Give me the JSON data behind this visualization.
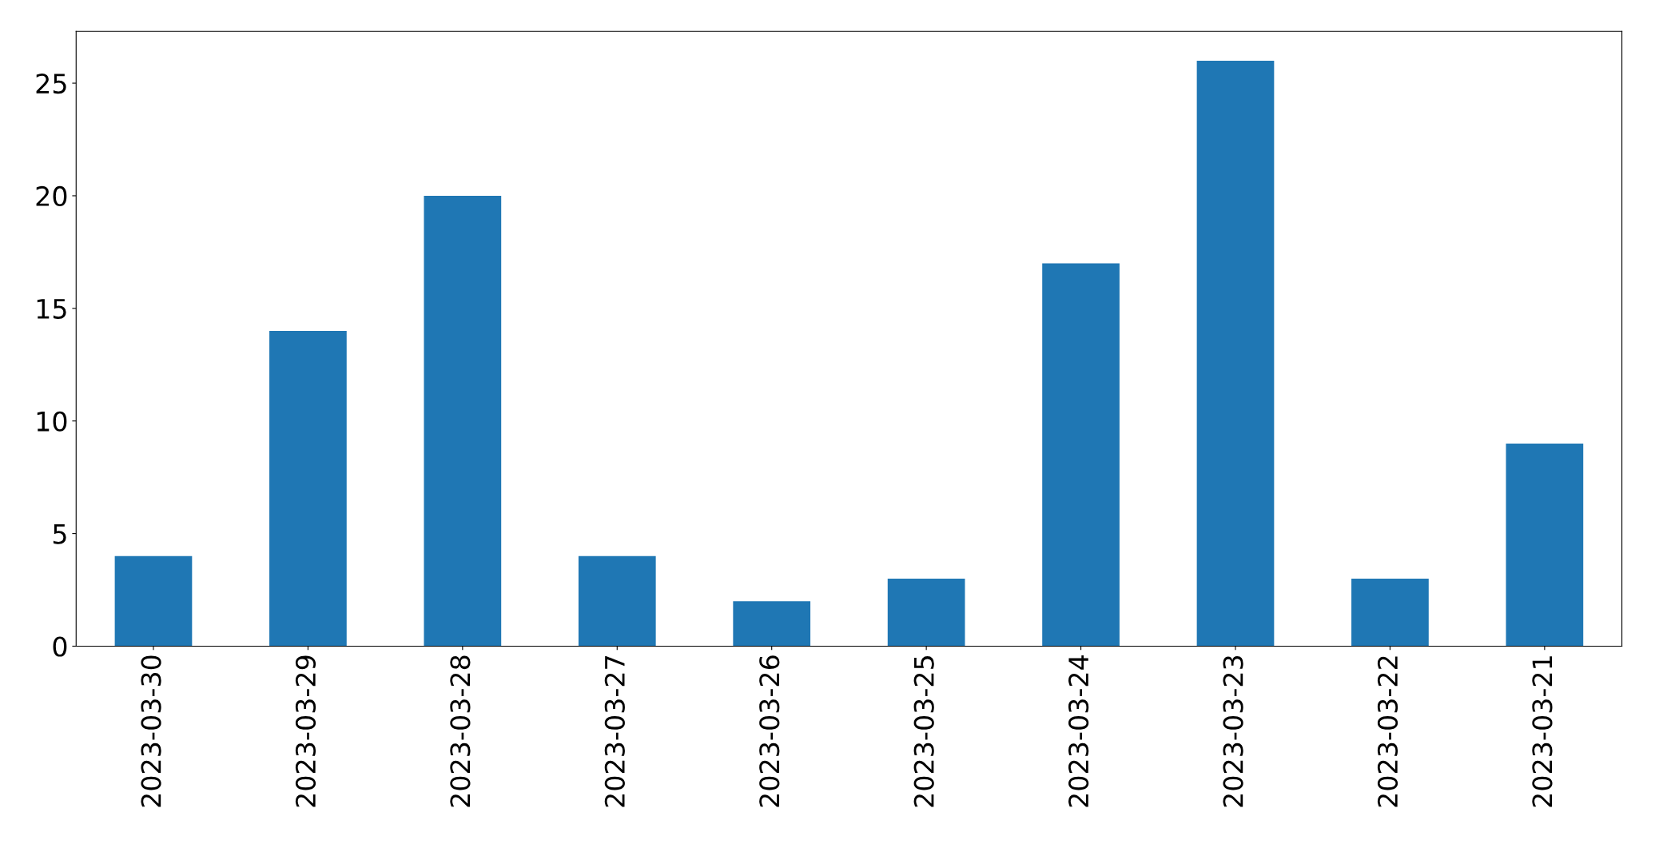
{
  "chart_data": {
    "type": "bar",
    "categories": [
      "2023-03-30",
      "2023-03-29",
      "2023-03-28",
      "2023-03-27",
      "2023-03-26",
      "2023-03-25",
      "2023-03-24",
      "2023-03-23",
      "2023-03-22",
      "2023-03-21"
    ],
    "values": [
      4,
      14,
      20,
      4,
      2,
      3,
      17,
      26,
      3,
      9
    ],
    "color": "#1f77b4",
    "ylim": [
      0,
      27.3
    ],
    "yticks": [
      0,
      5,
      10,
      15,
      20,
      25
    ],
    "grid": false,
    "legend": false
  }
}
